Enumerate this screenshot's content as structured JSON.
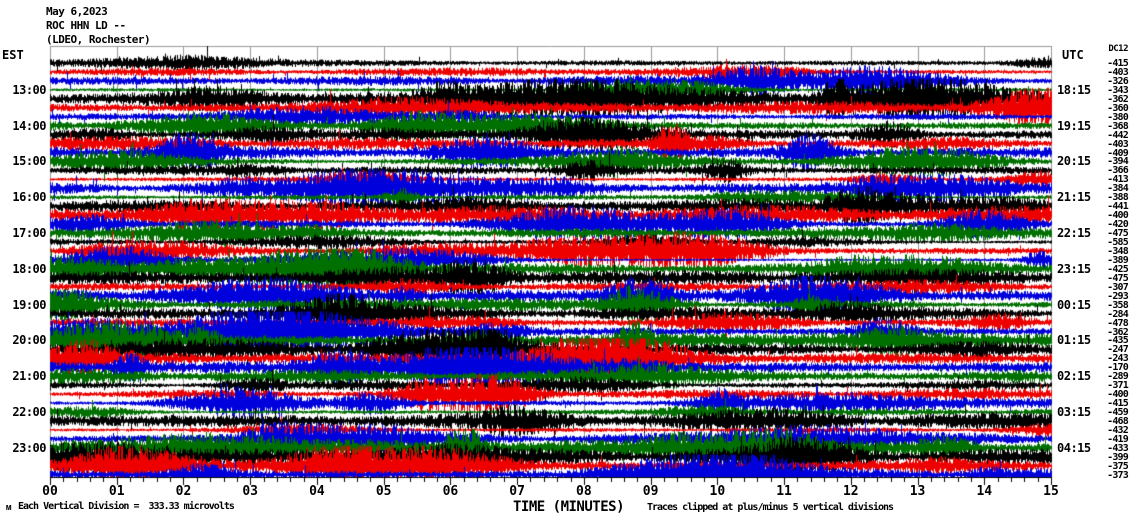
{
  "header": {
    "date": "May 6,2023",
    "station": "ROC HHN LD --",
    "network": "(LDEO, Rochester)"
  },
  "timezones": {
    "left": "EST",
    "right": "UTC"
  },
  "footer": {
    "logo_glyph": "ᴍ",
    "scale_note": "Each Vertical Division =  333.33 microvolts",
    "x_axis_title": "TIME (MINUTES)",
    "clip_note": "Traces clipped at plus/minus 5 vertical divisions"
  },
  "chart_data": {
    "type": "helicorder",
    "title": "ROC HHN LD -- (LDEO, Rochester)",
    "date": "May 6,2023",
    "xlabel": "TIME (MINUTES)",
    "minutes_per_line": 15,
    "x_range": [
      0,
      15
    ],
    "x_ticks": [
      "00",
      "01",
      "02",
      "03",
      "04",
      "05",
      "06",
      "07",
      "08",
      "09",
      "10",
      "11",
      "12",
      "13",
      "14",
      "15"
    ],
    "minor_ticks_per_minute": 5,
    "trace_count": 47,
    "traces_per_hour": 4,
    "trace_color_cycle": [
      "#000000",
      "#ee0000",
      "#0000dd",
      "#007000"
    ],
    "grid_color": "#999999",
    "axis_color": "#000000",
    "clip_divisions": 5,
    "microvolts_per_division": "333.33",
    "dc_column_header": "DC12",
    "dc_offsets": [
      -415,
      -403,
      -326,
      -343,
      -362,
      -360,
      -380,
      -368,
      -442,
      -403,
      -409,
      -394,
      -366,
      -413,
      -384,
      -388,
      -441,
      -400,
      -420,
      -475,
      -585,
      -348,
      -389,
      -425,
      -475,
      -307,
      -293,
      -358,
      -284,
      -478,
      -362,
      -435,
      -247,
      -243,
      -170,
      -289,
      -371,
      -400,
      -415,
      -459,
      -468,
      -432,
      -419,
      -433,
      -399,
      -375,
      -373
    ],
    "hour_rows": [
      {
        "trace_index": 3,
        "est": "13:00",
        "utc": "18:15"
      },
      {
        "trace_index": 7,
        "est": "14:00",
        "utc": "19:15"
      },
      {
        "trace_index": 11,
        "est": "15:00",
        "utc": "20:15"
      },
      {
        "trace_index": 15,
        "est": "16:00",
        "utc": "21:15"
      },
      {
        "trace_index": 19,
        "est": "17:00",
        "utc": "22:15"
      },
      {
        "trace_index": 23,
        "est": "18:00",
        "utc": "23:15"
      },
      {
        "trace_index": 27,
        "est": "19:00",
        "utc": "00:15"
      },
      {
        "trace_index": 31,
        "est": "20:00",
        "utc": "01:15"
      },
      {
        "trace_index": 35,
        "est": "21:00",
        "utc": "02:15"
      },
      {
        "trace_index": 39,
        "est": "22:00",
        "utc": "03:15"
      },
      {
        "trace_index": 43,
        "est": "23:00",
        "utc": "04:15"
      }
    ],
    "noise_seed": 20230506
  }
}
